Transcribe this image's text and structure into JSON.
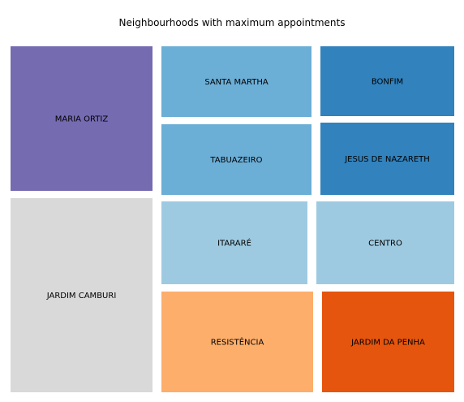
{
  "chart_data": {
    "type": "treemap",
    "title": "Neighbourhoods with maximum appointments",
    "tiles": [
      {
        "label": "MARIA ORTIZ",
        "color": "#756bb1"
      },
      {
        "label": "JARDIM CAMBURI",
        "color": "#d9d9d9"
      },
      {
        "label": "SANTA MARTHA",
        "color": "#6baed6"
      },
      {
        "label": "TABUAZEIRO",
        "color": "#6baed6"
      },
      {
        "label": "BONFIM",
        "color": "#3182bd"
      },
      {
        "label": "JESUS DE NAZARETH",
        "color": "#3182bd"
      },
      {
        "label": "ITARARÉ",
        "color": "#9ecae1"
      },
      {
        "label": "CENTRO",
        "color": "#9ecae1"
      },
      {
        "label": "RESISTÊNCIA",
        "color": "#fdae6b"
      },
      {
        "label": "JARDIM DA PENHA",
        "color": "#e6550d"
      }
    ]
  }
}
